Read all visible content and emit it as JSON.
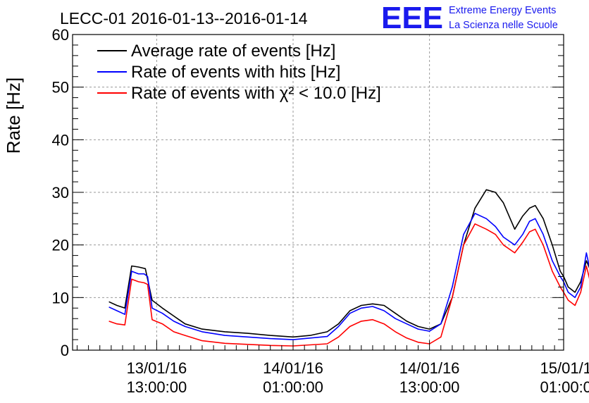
{
  "chart_data": {
    "type": "line",
    "title": "LECC-01 2016-01-13--2016-01-14",
    "ylabel": "Rate [Hz]",
    "xlabel": "",
    "ylim": [
      0,
      60
    ],
    "yticks": [
      0,
      10,
      20,
      30,
      40,
      50,
      60
    ],
    "x_unit": "hours since 2016-01-13 00:00",
    "xlim": [
      5.6,
      48.8
    ],
    "xticks": [
      {
        "x": 13,
        "line1": "13/01/16",
        "line2": "13:00:00"
      },
      {
        "x": 25,
        "line1": "14/01/16",
        "line2": "01:00:00"
      },
      {
        "x": 37,
        "line1": "14/01/16",
        "line2": "13:00:00"
      },
      {
        "x": 49,
        "line1": "15/01/1",
        "line2": "01:00:0"
      }
    ],
    "grid": true,
    "legend_position": "top-left",
    "series": [
      {
        "name": "Average rate of events [Hz]",
        "color": "#000000",
        "points": [
          [
            8.8,
            9.2
          ],
          [
            9.5,
            8.5
          ],
          [
            10.2,
            8
          ],
          [
            10.8,
            16
          ],
          [
            11.4,
            15.8
          ],
          [
            12,
            15.5
          ],
          [
            12.6,
            9.5
          ],
          [
            13.5,
            8
          ],
          [
            14.5,
            6.5
          ],
          [
            15.5,
            5
          ],
          [
            17,
            4
          ],
          [
            19,
            3.5
          ],
          [
            21,
            3.2
          ],
          [
            23,
            2.8
          ],
          [
            25,
            2.5
          ],
          [
            26.5,
            2.8
          ],
          [
            28,
            3.5
          ],
          [
            29,
            5
          ],
          [
            30,
            7.5
          ],
          [
            31,
            8.5
          ],
          [
            32,
            8.8
          ],
          [
            33,
            8.5
          ],
          [
            34,
            7
          ],
          [
            35,
            5.5
          ],
          [
            36,
            4.5
          ],
          [
            37,
            4
          ],
          [
            38,
            5
          ],
          [
            39,
            10
          ],
          [
            40,
            20
          ],
          [
            41,
            27
          ],
          [
            42,
            30.5
          ],
          [
            42.8,
            30
          ],
          [
            43.5,
            28
          ],
          [
            44.5,
            23
          ],
          [
            45.2,
            25.5
          ],
          [
            45.8,
            27
          ],
          [
            46.3,
            27.5
          ],
          [
            47,
            25
          ],
          [
            47.8,
            20
          ],
          [
            48.5,
            15
          ],
          [
            48.8,
            14
          ],
          [
            49.2,
            12
          ],
          [
            49.8,
            11
          ],
          [
            50.3,
            13
          ],
          [
            50.8,
            17
          ],
          [
            51.2,
            15
          ]
        ]
      },
      {
        "name": "Rate of events with hits [Hz]",
        "color": "#0000ff",
        "points": [
          [
            8.8,
            8.2
          ],
          [
            9.5,
            7.5
          ],
          [
            10.2,
            6.8
          ],
          [
            10.8,
            15
          ],
          [
            11.4,
            14.5
          ],
          [
            11.9,
            14.5
          ],
          [
            12.2,
            14
          ],
          [
            12.6,
            8
          ],
          [
            13.5,
            7
          ],
          [
            14.5,
            5.5
          ],
          [
            15.5,
            4.5
          ],
          [
            17,
            3.5
          ],
          [
            19,
            2.8
          ],
          [
            21,
            2.5
          ],
          [
            23,
            2.2
          ],
          [
            25,
            2
          ],
          [
            26.5,
            2.3
          ],
          [
            28,
            2.6
          ],
          [
            29,
            4.5
          ],
          [
            30,
            7
          ],
          [
            31,
            8
          ],
          [
            32,
            8.3
          ],
          [
            33,
            7.5
          ],
          [
            34,
            6
          ],
          [
            35,
            5
          ],
          [
            36,
            4
          ],
          [
            37,
            3.6
          ],
          [
            38,
            5
          ],
          [
            39,
            12
          ],
          [
            40,
            22
          ],
          [
            41,
            26
          ],
          [
            42,
            25
          ],
          [
            42.8,
            23.5
          ],
          [
            43.5,
            21.5
          ],
          [
            44.5,
            20
          ],
          [
            45.2,
            22
          ],
          [
            45.8,
            24.5
          ],
          [
            46.3,
            25
          ],
          [
            47,
            22
          ],
          [
            47.8,
            17
          ],
          [
            48.5,
            14
          ],
          [
            48.8,
            13
          ],
          [
            49.2,
            11
          ],
          [
            49.8,
            10
          ],
          [
            50.3,
            12
          ],
          [
            50.8,
            18.5
          ],
          [
            51.2,
            14.5
          ]
        ]
      },
      {
        "name": "Rate of events with χ² < 10.0 [Hz]",
        "color": "#ff0000",
        "points": [
          [
            8.8,
            5.5
          ],
          [
            9.5,
            5
          ],
          [
            10.2,
            4.8
          ],
          [
            10.8,
            13.5
          ],
          [
            11.4,
            13
          ],
          [
            11.9,
            12.8
          ],
          [
            12.2,
            12.5
          ],
          [
            12.6,
            5.8
          ],
          [
            13.5,
            5
          ],
          [
            14.5,
            3.5
          ],
          [
            15.5,
            2.8
          ],
          [
            17,
            1.8
          ],
          [
            19,
            1.3
          ],
          [
            21,
            1.1
          ],
          [
            23,
            0.9
          ],
          [
            25,
            0.8
          ],
          [
            26.5,
            1
          ],
          [
            28,
            1.2
          ],
          [
            29,
            2.5
          ],
          [
            30,
            4.5
          ],
          [
            31,
            5.5
          ],
          [
            32,
            5.8
          ],
          [
            33,
            5
          ],
          [
            34,
            3.5
          ],
          [
            35,
            2.3
          ],
          [
            36,
            1.5
          ],
          [
            37,
            1.2
          ],
          [
            38,
            2.5
          ],
          [
            39,
            10
          ],
          [
            40,
            20
          ],
          [
            41,
            24
          ],
          [
            42,
            23
          ],
          [
            42.8,
            22
          ],
          [
            43.5,
            20
          ],
          [
            44.5,
            18.5
          ],
          [
            45.2,
            20.5
          ],
          [
            45.8,
            22.5
          ],
          [
            46.3,
            23
          ],
          [
            47,
            20
          ],
          [
            47.8,
            15
          ],
          [
            48.5,
            12
          ],
          [
            48.8,
            11
          ],
          [
            49.2,
            9.5
          ],
          [
            49.8,
            8.5
          ],
          [
            50.3,
            11
          ],
          [
            50.8,
            16
          ],
          [
            51.2,
            12.5
          ]
        ]
      }
    ]
  },
  "logo": {
    "mark": "EEE",
    "line1": "Extreme Energy Events",
    "line2": "La Scienza nelle Scuole"
  }
}
